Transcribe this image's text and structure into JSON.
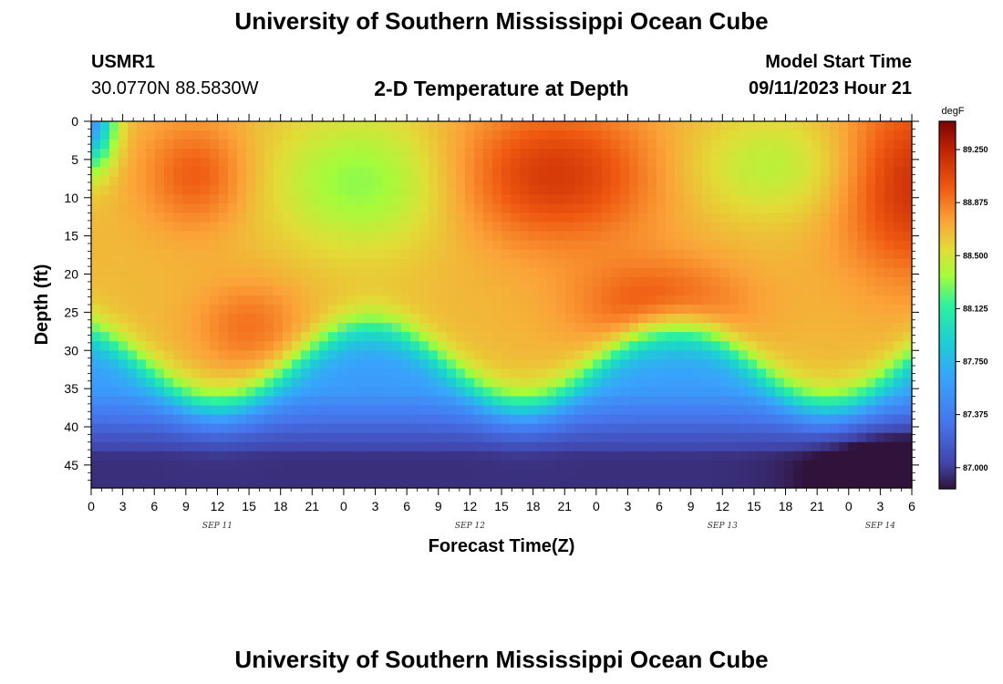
{
  "header": {
    "title": "University of Southern Mississippi Ocean Cube",
    "station_id": "USMR1",
    "coords": "30.0770N  88.5830W",
    "chart_title": "2-D Temperature at Depth",
    "model_start_label": "Model Start Time",
    "model_start_value": "09/11/2023 Hour 21"
  },
  "footer": {
    "title": "University of Southern Mississippi Ocean Cube"
  },
  "chart_data": {
    "type": "heatmap",
    "title": "2-D Temperature at Depth",
    "xlabel": "Forecast Time(Z)",
    "ylabel": "Depth (ft)",
    "y_ticks": [
      "0",
      "5",
      "10",
      "15",
      "20",
      "25",
      "30",
      "35",
      "40",
      "45"
    ],
    "y_range": [
      0,
      48
    ],
    "x_tick_labels": [
      "0",
      "3",
      "6",
      "9",
      "12",
      "15",
      "18",
      "21",
      "0",
      "3",
      "6",
      "9",
      "12",
      "15",
      "18",
      "21",
      "0",
      "3",
      "6",
      "9",
      "12",
      "15",
      "18",
      "21",
      "0",
      "3",
      "6"
    ],
    "date_labels": [
      {
        "text": "SEP 11",
        "tick_index": 4
      },
      {
        "text": "SEP 12",
        "tick_index": 12
      },
      {
        "text": "SEP 13",
        "tick_index": 20
      },
      {
        "text": "SEP 14",
        "tick_index": 25
      }
    ],
    "colorbar": {
      "unit": "degF",
      "min": 86.85,
      "max": 89.45,
      "labels": [
        "89.250",
        "88.875",
        "88.500",
        "88.125",
        "87.750",
        "87.375",
        "87.000"
      ]
    },
    "grid": false
  }
}
